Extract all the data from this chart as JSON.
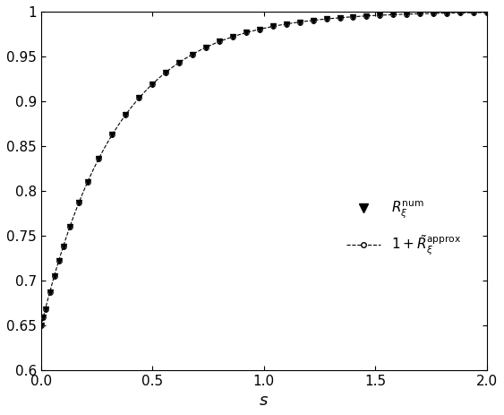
{
  "xlim": [
    0,
    2
  ],
  "ylim": [
    0.6,
    1.0
  ],
  "xticks": [
    0,
    0.5,
    1,
    1.5,
    2
  ],
  "ytick_vals": [
    0.6,
    0.65,
    0.7,
    0.75,
    0.8,
    0.85,
    0.9,
    0.95,
    1.0
  ],
  "ytick_labels": [
    "0.6",
    "0.65",
    "0.7",
    "0.75",
    "0.8",
    "0.85",
    "0.9",
    "0.95",
    "1"
  ],
  "xlabel": "$s$",
  "legend_label_1": "$R_{\\xi}^{\\mathrm{num}}$",
  "legend_label_2": "$1 + \\tilde{R}_{\\xi}^{\\mathrm{approx}}$",
  "f0": 0.648,
  "erf_scale": 1.85,
  "line_color": "#000000",
  "background_color": "#ffffff",
  "figsize": [
    5.63,
    4.63
  ],
  "dpi": 100
}
